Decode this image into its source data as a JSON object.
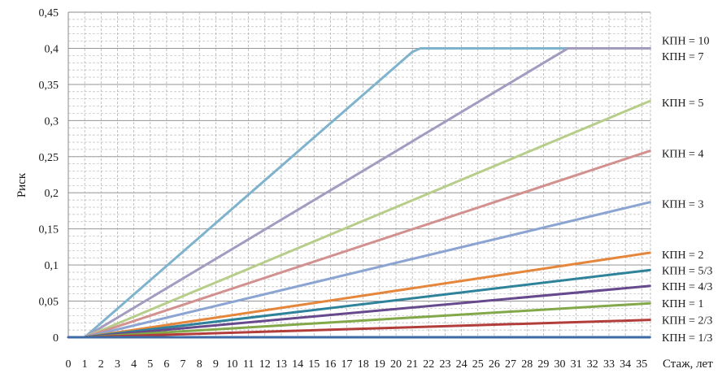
{
  "chart_data": {
    "type": "line",
    "xlabel": "Стаж, лет",
    "ylabel": "Риск",
    "xlim": [
      0,
      35
    ],
    "ylim": [
      0,
      0.45
    ],
    "x_ticks": [
      "0",
      "1",
      "2",
      "3",
      "4",
      "5",
      "6",
      "7",
      "8",
      "9",
      "10",
      "11",
      "12",
      "13",
      "14",
      "15",
      "16",
      "17",
      "18",
      "19",
      "20",
      "21",
      "22",
      "23",
      "24",
      "25",
      "26",
      "27",
      "28",
      "29",
      "30",
      "31",
      "32",
      "33",
      "34",
      "35"
    ],
    "y_ticks": [
      {
        "value": 0,
        "label": "0"
      },
      {
        "value": 0.05,
        "label": "0,05"
      },
      {
        "value": 0.1,
        "label": "0,1"
      },
      {
        "value": 0.15,
        "label": "0,15"
      },
      {
        "value": 0.2,
        "label": "0,2"
      },
      {
        "value": 0.25,
        "label": "0,25"
      },
      {
        "value": 0.3,
        "label": "0,3"
      },
      {
        "value": 0.35,
        "label": "0,35"
      },
      {
        "value": 0.4,
        "label": "0,4"
      },
      {
        "value": 0.45,
        "label": "0,45"
      }
    ],
    "grid": true,
    "series": [
      {
        "name": "КПН = 10",
        "color": "#7fb2cc",
        "points": [
          [
            1,
            0
          ],
          [
            21,
            0.395
          ],
          [
            21.5,
            0.4
          ],
          [
            35.5,
            0.4
          ]
        ]
      },
      {
        "name": "КПН = 7",
        "color": "#a39bc0",
        "points": [
          [
            1,
            0
          ],
          [
            30.5,
            0.4
          ],
          [
            35.5,
            0.4
          ]
        ]
      },
      {
        "name": "КПН = 5",
        "color": "#b7ce8a",
        "points": [
          [
            1,
            0
          ],
          [
            35.5,
            0.327
          ]
        ]
      },
      {
        "name": "КПН = 4",
        "color": "#d2908e",
        "points": [
          [
            1,
            0
          ],
          [
            35.5,
            0.258
          ]
        ]
      },
      {
        "name": "КПН = 3",
        "color": "#8ba4d1",
        "points": [
          [
            1,
            0
          ],
          [
            35.5,
            0.187
          ]
        ]
      },
      {
        "name": "КПН = 2",
        "color": "#e4873c",
        "points": [
          [
            1,
            0
          ],
          [
            35.5,
            0.117
          ]
        ]
      },
      {
        "name": "КПН = 5/3",
        "color": "#2e8299",
        "points": [
          [
            1,
            0
          ],
          [
            35.5,
            0.093
          ]
        ]
      },
      {
        "name": "КПН = 4/3",
        "color": "#664a8d",
        "points": [
          [
            1,
            0
          ],
          [
            35.5,
            0.071
          ]
        ]
      },
      {
        "name": "КПН = 1",
        "color": "#82a84a",
        "points": [
          [
            1,
            0
          ],
          [
            35.5,
            0.047
          ]
        ]
      },
      {
        "name": "КПН = 2/3",
        "color": "#b33d3b",
        "points": [
          [
            1,
            0
          ],
          [
            35.5,
            0.024
          ]
        ]
      },
      {
        "name": "КПН = 1/3",
        "color": "#3c6aa6",
        "points": [
          [
            0,
            0
          ],
          [
            35.5,
            0
          ]
        ]
      }
    ],
    "series_labels": [
      {
        "text": "КПН = 10",
        "y": 0.411
      },
      {
        "text": "КПН = 7",
        "y": 0.389
      },
      {
        "text": "КПН = 5",
        "y": 0.325
      },
      {
        "text": "КПН = 4",
        "y": 0.255
      },
      {
        "text": "КПН = 3",
        "y": 0.185
      },
      {
        "text": "КПН = 2",
        "y": 0.115
      },
      {
        "text": "КПН = 5/3",
        "y": 0.093
      },
      {
        "text": "КПН = 4/3",
        "y": 0.071
      },
      {
        "text": "КПН = 1",
        "y": 0.047
      },
      {
        "text": "КПН = 2/3",
        "y": 0.024
      },
      {
        "text": "КПН = 1/3",
        "y": 0.0
      }
    ]
  }
}
